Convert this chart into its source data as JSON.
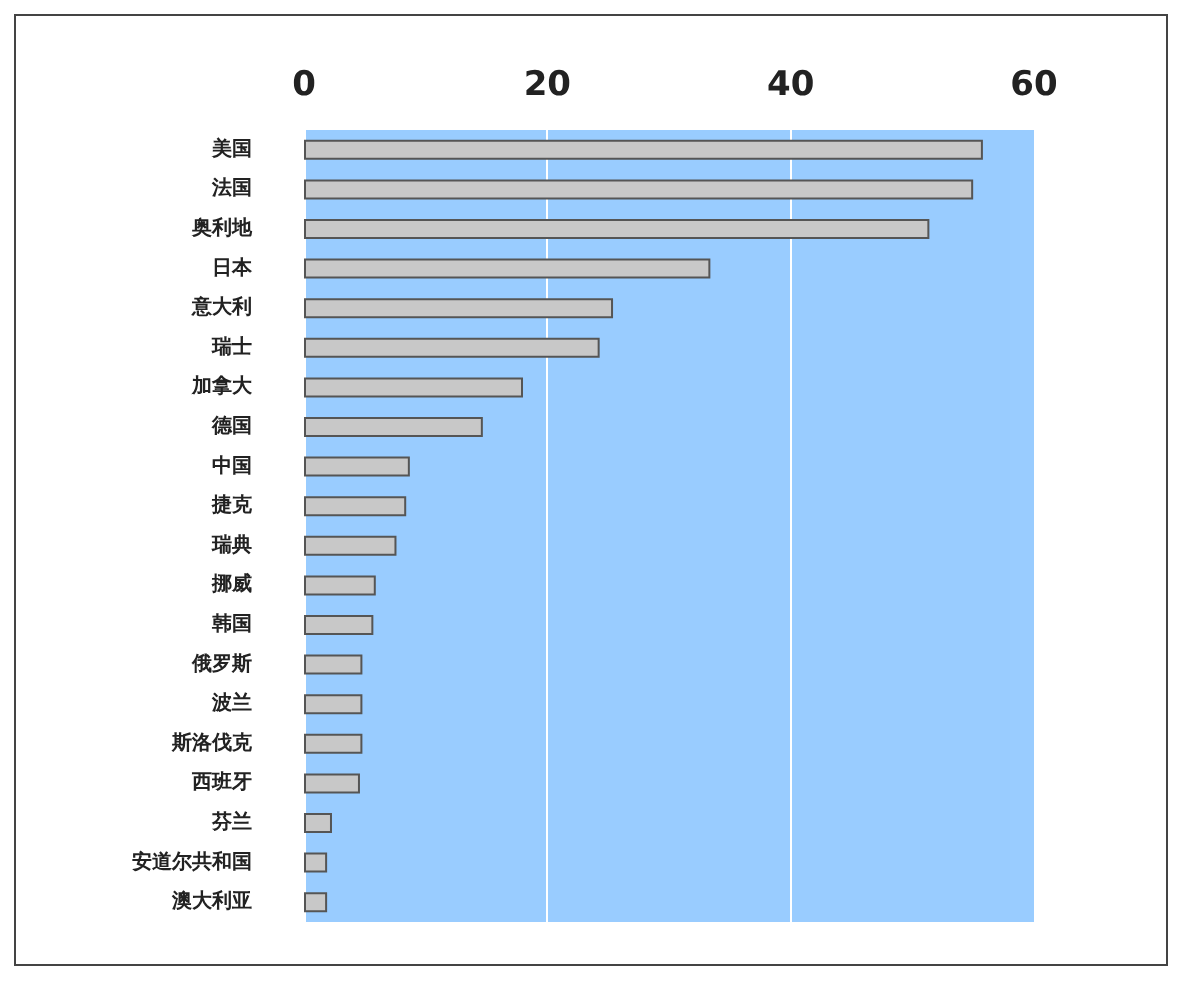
{
  "chart_data": {
    "type": "bar",
    "orientation": "horizontal",
    "categories": [
      "美国",
      "法国",
      "奥利地",
      "日本",
      "意大利",
      "瑞士",
      "加拿大",
      "德国",
      "中国",
      "捷克",
      "瑞典",
      "挪威",
      "韩国",
      "俄罗斯",
      "波兰",
      "斯洛伐克",
      "西班牙",
      "芬兰",
      "安道尔共和国",
      "澳大利亚"
    ],
    "values": [
      55.8,
      55.0,
      51.4,
      33.4,
      25.4,
      24.3,
      18.0,
      14.7,
      8.7,
      8.4,
      7.6,
      5.9,
      5.7,
      4.8,
      4.8,
      4.8,
      4.6,
      2.3,
      1.9,
      1.9
    ],
    "color": "#c8c8c8",
    "xlim": [
      0,
      60
    ],
    "xticks": [
      0,
      20,
      40,
      60
    ],
    "grid": "x"
  }
}
